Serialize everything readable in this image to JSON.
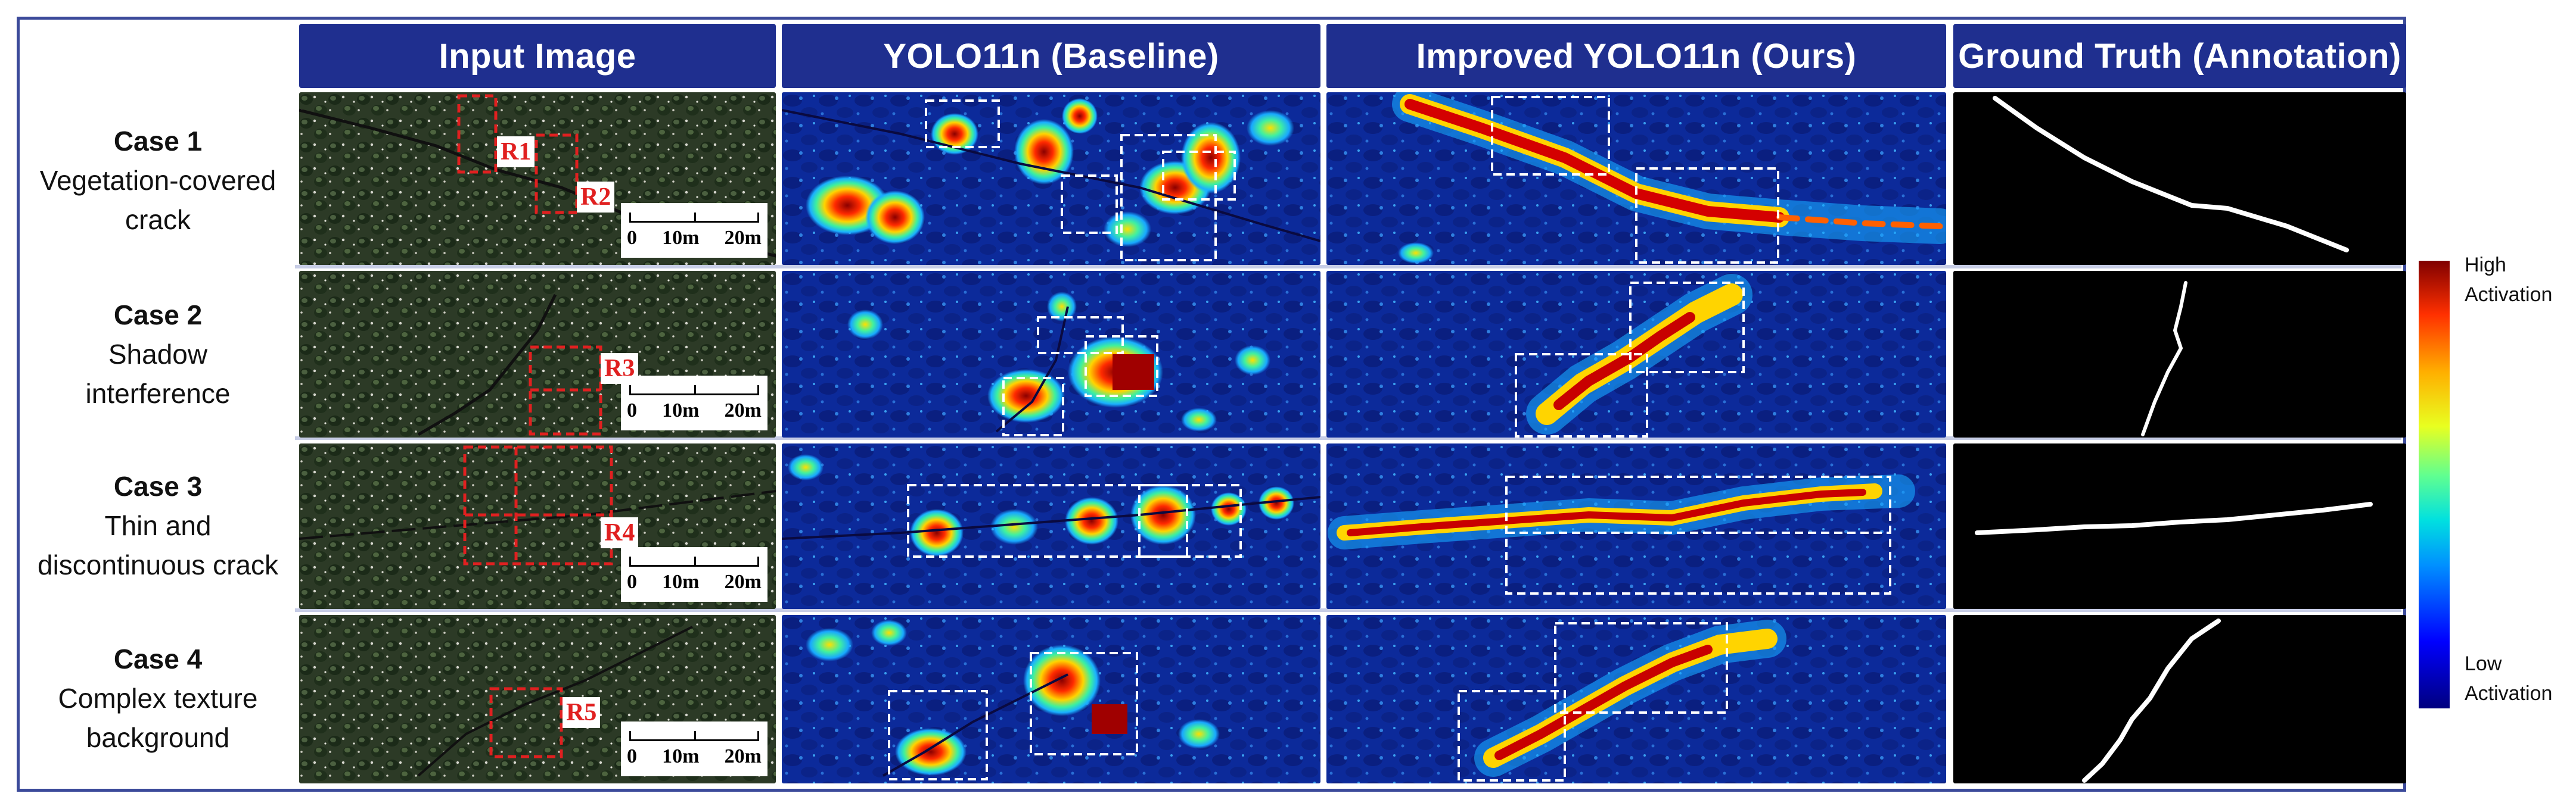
{
  "columns": [
    "Input Image",
    "YOLO11n (Baseline)",
    "Improved YOLO11n (Ours)",
    "Ground Truth (Annotation)"
  ],
  "rows": [
    {
      "case": "Case 1",
      "desc_line1": "Vegetation-covered",
      "desc_line2": "crack",
      "regions": [
        "R1",
        "R2"
      ]
    },
    {
      "case": "Case 2",
      "desc_line1": "Shadow",
      "desc_line2": "interference",
      "regions": [
        "R3"
      ]
    },
    {
      "case": "Case 3",
      "desc_line1": "Thin and",
      "desc_line2": "discontinuous crack",
      "regions": [
        "R4"
      ]
    },
    {
      "case": "Case 4",
      "desc_line1": "Complex texture",
      "desc_line2": "background",
      "regions": [
        "R5"
      ]
    }
  ],
  "scale": {
    "zero": "0",
    "mid": "10m",
    "end": "20m"
  },
  "colorbar": {
    "high_line1": "High",
    "high_line2": "Activation",
    "low_line1": "Low",
    "low_line2": "Activation",
    "colors": {
      "high": "#800000",
      "low": "#00007f"
    }
  },
  "colors": {
    "header_bg": "#1f2f8f",
    "frame": "#3b4a9a",
    "region_box": "#e02020",
    "detect_box": "#ffffff"
  }
}
